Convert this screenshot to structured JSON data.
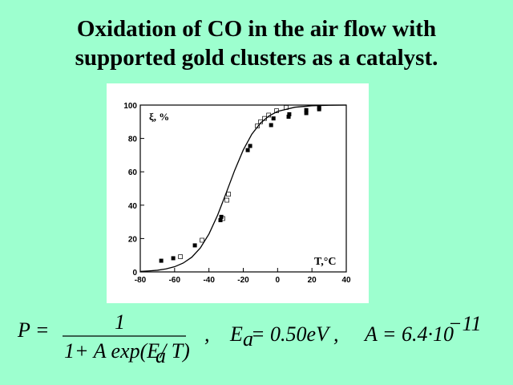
{
  "chart_data": {
    "type": "scatter",
    "title": "Oxidation of CO in the air flow with supported gold clusters as a catalyst.",
    "xlabel": "T,°C",
    "ylabel": "ξ, %",
    "xlim": [
      -80,
      40
    ],
    "xticks": [
      -80,
      -60,
      -40,
      -20,
      0,
      20,
      40
    ],
    "ylim": [
      0,
      100
    ],
    "yticks": [
      0,
      20,
      40,
      60,
      80,
      100
    ],
    "series": [
      {
        "type": "scatter",
        "marker": "filled-square",
        "color": "#000000",
        "x": [
          -67.8,
          -60.8,
          -48.2,
          -33.3,
          -32.8,
          -17.4,
          -16,
          -3.8,
          -2.4,
          6.4,
          6.8,
          16.7,
          16.7,
          24.2,
          24.2
        ],
        "values": [
          6.7,
          8.2,
          15.9,
          31,
          33,
          73,
          75.5,
          88,
          92,
          93,
          94.5,
          95.2,
          97,
          97.5,
          98.5
        ]
      },
      {
        "type": "scatter",
        "marker": "open-square",
        "color": "#000000",
        "x": [
          -56.6,
          -44,
          -31.9,
          -29.5,
          -28.6,
          -11.8,
          -9.9,
          -7.6,
          -5.2,
          -0.6,
          5
        ],
        "values": [
          9.1,
          19,
          32,
          43,
          46.6,
          87.5,
          90,
          92,
          94,
          96.6,
          98.6
        ]
      },
      {
        "type": "line",
        "color": "#000000",
        "x": [
          -80,
          -75,
          -70,
          -65,
          -60,
          -55,
          -50,
          -45,
          -40,
          -35,
          -30,
          -25,
          -20,
          -15,
          -10,
          -5,
          0,
          10,
          20,
          30,
          40
        ],
        "values": [
          0.3,
          0.6,
          1,
          1.8,
          3.1,
          5.3,
          8.8,
          14.4,
          22.7,
          33.9,
          47.2,
          60.9,
          73.1,
          82.6,
          89.2,
          93.5,
          96.2,
          98.7,
          99.6,
          99.9,
          100
        ]
      }
    ]
  },
  "formula": {
    "lhs": "P =",
    "numerator": "1",
    "den_a": "1+ A exp(E",
    "den_sub": "a",
    "den_b": " / T)",
    "comma": ",",
    "ea": "E",
    "ea_sub": "a",
    "ea_val": "= 0.50eV ,",
    "a_val": "A = 6.4·10",
    "a_exp": "−11"
  }
}
